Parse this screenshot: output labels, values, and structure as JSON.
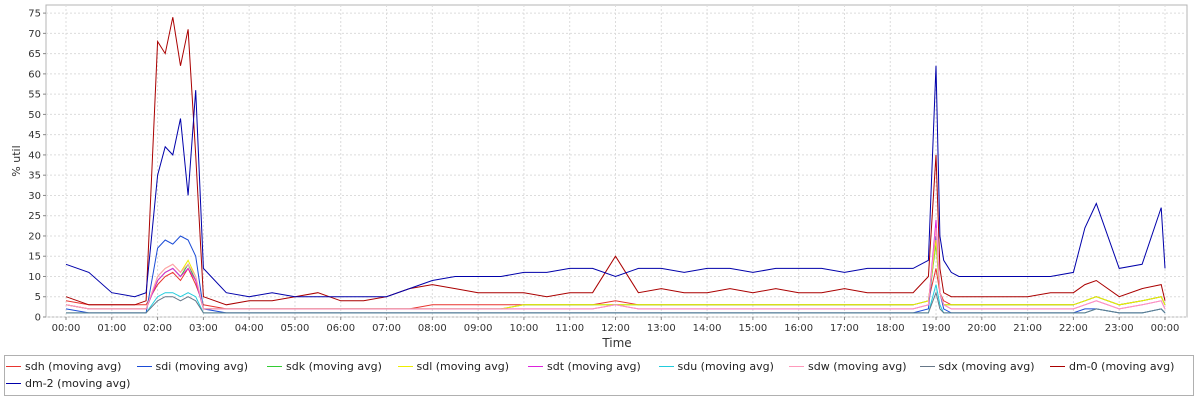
{
  "chart_data": {
    "type": "line",
    "title": "",
    "xlabel": "Time",
    "ylabel": "% util",
    "ylim": [
      0,
      77
    ],
    "yticks": [
      0,
      5,
      10,
      15,
      20,
      25,
      30,
      35,
      40,
      45,
      50,
      55,
      60,
      65,
      70,
      75
    ],
    "x_tick_labels": [
      "00:00",
      "01:00",
      "02:00",
      "03:00",
      "04:00",
      "05:00",
      "06:00",
      "07:00",
      "08:00",
      "09:00",
      "10:00",
      "11:00",
      "12:00",
      "13:00",
      "14:00",
      "15:00",
      "16:00",
      "17:00",
      "18:00",
      "19:00",
      "20:00",
      "21:00",
      "22:00",
      "23:00",
      "00:00"
    ],
    "grid": true,
    "legend_position": "bottom",
    "x": [
      "00:00",
      "00:30",
      "01:00",
      "01:30",
      "01:45",
      "02:00",
      "02:10",
      "02:20",
      "02:30",
      "02:40",
      "02:50",
      "03:00",
      "03:30",
      "04:00",
      "04:30",
      "05:00",
      "05:30",
      "06:00",
      "06:30",
      "07:00",
      "07:30",
      "08:00",
      "08:30",
      "09:00",
      "09:30",
      "10:00",
      "10:30",
      "11:00",
      "11:30",
      "12:00",
      "12:30",
      "13:00",
      "13:30",
      "14:00",
      "14:30",
      "15:00",
      "15:30",
      "16:00",
      "16:30",
      "17:00",
      "17:30",
      "18:00",
      "18:30",
      "18:50",
      "19:00",
      "19:05",
      "19:10",
      "19:20",
      "19:30",
      "20:00",
      "20:30",
      "21:00",
      "21:30",
      "22:00",
      "22:15",
      "22:30",
      "23:00",
      "23:30",
      "23:55",
      "00:00"
    ],
    "series": [
      {
        "name": "sdh (moving avg)",
        "color": "#e8352f",
        "values": [
          4,
          3,
          3,
          3,
          3,
          8,
          10,
          11,
          9,
          12,
          8,
          3,
          2,
          2,
          2,
          2,
          2,
          2,
          2,
          2,
          2,
          3,
          3,
          3,
          3,
          3,
          3,
          3,
          3,
          4,
          3,
          3,
          3,
          3,
          3,
          3,
          3,
          3,
          3,
          3,
          3,
          3,
          3,
          4,
          12,
          6,
          4,
          3,
          3,
          3,
          3,
          3,
          3,
          3,
          4,
          5,
          3,
          4,
          5,
          3
        ]
      },
      {
        "name": "sdi (moving avg)",
        "color": "#1a4bd6",
        "values": [
          2,
          1,
          1,
          1,
          1,
          17,
          19,
          18,
          20,
          19,
          15,
          2,
          1,
          1,
          1,
          1,
          1,
          1,
          1,
          1,
          1,
          1,
          1,
          1,
          1,
          1,
          1,
          1,
          1,
          1,
          1,
          1,
          1,
          1,
          1,
          1,
          1,
          1,
          1,
          1,
          1,
          1,
          1,
          2,
          20,
          6,
          2,
          1,
          1,
          1,
          1,
          1,
          1,
          1,
          2,
          2,
          1,
          1,
          2,
          1
        ]
      },
      {
        "name": "sdk (moving avg)",
        "color": "#33cc33",
        "values": [
          3,
          2,
          2,
          2,
          2,
          9,
          11,
          12,
          10,
          13,
          9,
          2,
          2,
          2,
          2,
          2,
          2,
          2,
          2,
          2,
          2,
          2,
          2,
          2,
          2,
          3,
          3,
          3,
          3,
          3,
          3,
          3,
          3,
          3,
          3,
          3,
          3,
          3,
          3,
          3,
          3,
          3,
          3,
          4,
          18,
          6,
          3,
          3,
          3,
          3,
          3,
          3,
          3,
          3,
          4,
          5,
          3,
          4,
          5,
          3
        ]
      },
      {
        "name": "sdl (moving avg)",
        "color": "#eeee00",
        "values": [
          3,
          2,
          2,
          2,
          2,
          10,
          12,
          13,
          11,
          14,
          10,
          2,
          2,
          2,
          2,
          2,
          2,
          2,
          2,
          2,
          2,
          2,
          2,
          2,
          2,
          3,
          3,
          3,
          3,
          3,
          3,
          3,
          3,
          3,
          3,
          3,
          3,
          3,
          3,
          3,
          3,
          3,
          3,
          4,
          19,
          6,
          3,
          3,
          3,
          3,
          3,
          3,
          3,
          3,
          4,
          5,
          3,
          4,
          5,
          3
        ]
      },
      {
        "name": "sdt (moving avg)",
        "color": "#dd22dd",
        "values": [
          3,
          2,
          2,
          2,
          2,
          9,
          11,
          12,
          10,
          12,
          9,
          2,
          2,
          2,
          2,
          2,
          2,
          2,
          2,
          2,
          2,
          2,
          2,
          2,
          2,
          2,
          2,
          2,
          2,
          3,
          2,
          2,
          2,
          2,
          2,
          2,
          2,
          2,
          2,
          2,
          2,
          2,
          2,
          3,
          24,
          6,
          3,
          2,
          2,
          2,
          2,
          2,
          2,
          2,
          3,
          4,
          2,
          3,
          4,
          2
        ]
      },
      {
        "name": "sdu (moving avg)",
        "color": "#22ccdd",
        "values": [
          1,
          1,
          1,
          1,
          1,
          5,
          6,
          6,
          5,
          6,
          5,
          1,
          1,
          1,
          1,
          1,
          1,
          1,
          1,
          1,
          1,
          1,
          1,
          1,
          1,
          1,
          1,
          1,
          1,
          1,
          1,
          1,
          1,
          1,
          1,
          1,
          1,
          1,
          1,
          1,
          1,
          1,
          1,
          1,
          8,
          3,
          1,
          1,
          1,
          1,
          1,
          1,
          1,
          1,
          1,
          2,
          1,
          1,
          2,
          1
        ]
      },
      {
        "name": "sdw (moving avg)",
        "color": "#ff99bb",
        "values": [
          3,
          2,
          2,
          2,
          2,
          10,
          12,
          13,
          11,
          13,
          10,
          2,
          2,
          2,
          2,
          2,
          2,
          2,
          2,
          2,
          2,
          2,
          2,
          2,
          2,
          2,
          2,
          2,
          2,
          3,
          2,
          2,
          2,
          2,
          2,
          2,
          2,
          2,
          2,
          2,
          2,
          2,
          2,
          3,
          22,
          6,
          3,
          2,
          2,
          2,
          2,
          2,
          2,
          2,
          3,
          4,
          2,
          3,
          4,
          2
        ]
      },
      {
        "name": "sdx (moving avg)",
        "color": "#667788",
        "values": [
          1,
          1,
          1,
          1,
          1,
          4,
          5,
          5,
          4,
          5,
          4,
          1,
          1,
          1,
          1,
          1,
          1,
          1,
          1,
          1,
          1,
          1,
          1,
          1,
          1,
          1,
          1,
          1,
          1,
          1,
          1,
          1,
          1,
          1,
          1,
          1,
          1,
          1,
          1,
          1,
          1,
          1,
          1,
          1,
          6,
          2,
          1,
          1,
          1,
          1,
          1,
          1,
          1,
          1,
          1,
          2,
          1,
          1,
          2,
          1
        ]
      },
      {
        "name": "dm-0 (moving avg)",
        "color": "#aa0000",
        "values": [
          5,
          3,
          3,
          3,
          4,
          68,
          65,
          74,
          62,
          71,
          40,
          5,
          3,
          4,
          4,
          5,
          6,
          4,
          4,
          5,
          7,
          8,
          7,
          6,
          6,
          6,
          5,
          6,
          6,
          15,
          6,
          7,
          6,
          6,
          7,
          6,
          7,
          6,
          6,
          7,
          6,
          6,
          6,
          10,
          40,
          12,
          6,
          5,
          5,
          5,
          5,
          5,
          6,
          6,
          8,
          9,
          5,
          7,
          8,
          4
        ]
      },
      {
        "name": "dm-2 (moving avg)",
        "color": "#0000aa",
        "values": [
          13,
          11,
          6,
          5,
          6,
          35,
          42,
          40,
          49,
          30,
          56,
          12,
          6,
          5,
          6,
          5,
          5,
          5,
          5,
          5,
          7,
          9,
          10,
          10,
          10,
          11,
          11,
          12,
          12,
          10,
          12,
          12,
          11,
          12,
          12,
          11,
          12,
          12,
          12,
          11,
          12,
          12,
          12,
          14,
          62,
          20,
          14,
          11,
          10,
          10,
          10,
          10,
          10,
          11,
          22,
          28,
          12,
          13,
          27,
          12
        ]
      }
    ]
  }
}
